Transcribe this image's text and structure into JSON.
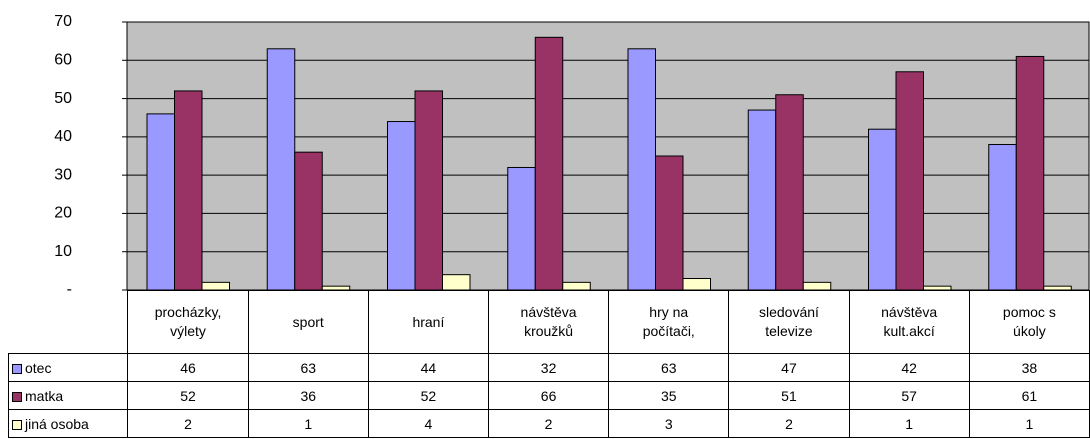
{
  "chart_data": {
    "type": "bar",
    "categories": [
      "procházky,\nvýlety",
      "sport",
      "hraní",
      "návštěva\nkroužků",
      "hry na\npočítači,",
      "sledování\ntelevize",
      "návštěva\nkult.akcí",
      "pomoc s\núkoly"
    ],
    "series": [
      {
        "name": "otec",
        "color": "#9999ff",
        "values": [
          46,
          63,
          44,
          32,
          63,
          47,
          42,
          38
        ]
      },
      {
        "name": "matka",
        "color": "#993366",
        "values": [
          52,
          36,
          52,
          66,
          35,
          51,
          57,
          61
        ]
      },
      {
        "name": "jiná osoba",
        "color": "#ffffcc",
        "values": [
          2,
          1,
          4,
          2,
          3,
          2,
          1,
          1
        ]
      }
    ],
    "ylim": [
      0,
      70
    ],
    "yticks": [
      {
        "value": 0,
        "label": "-"
      },
      10,
      20,
      30,
      40,
      50,
      60,
      70
    ],
    "grid": true,
    "plot_background": "#c0c0c0"
  }
}
